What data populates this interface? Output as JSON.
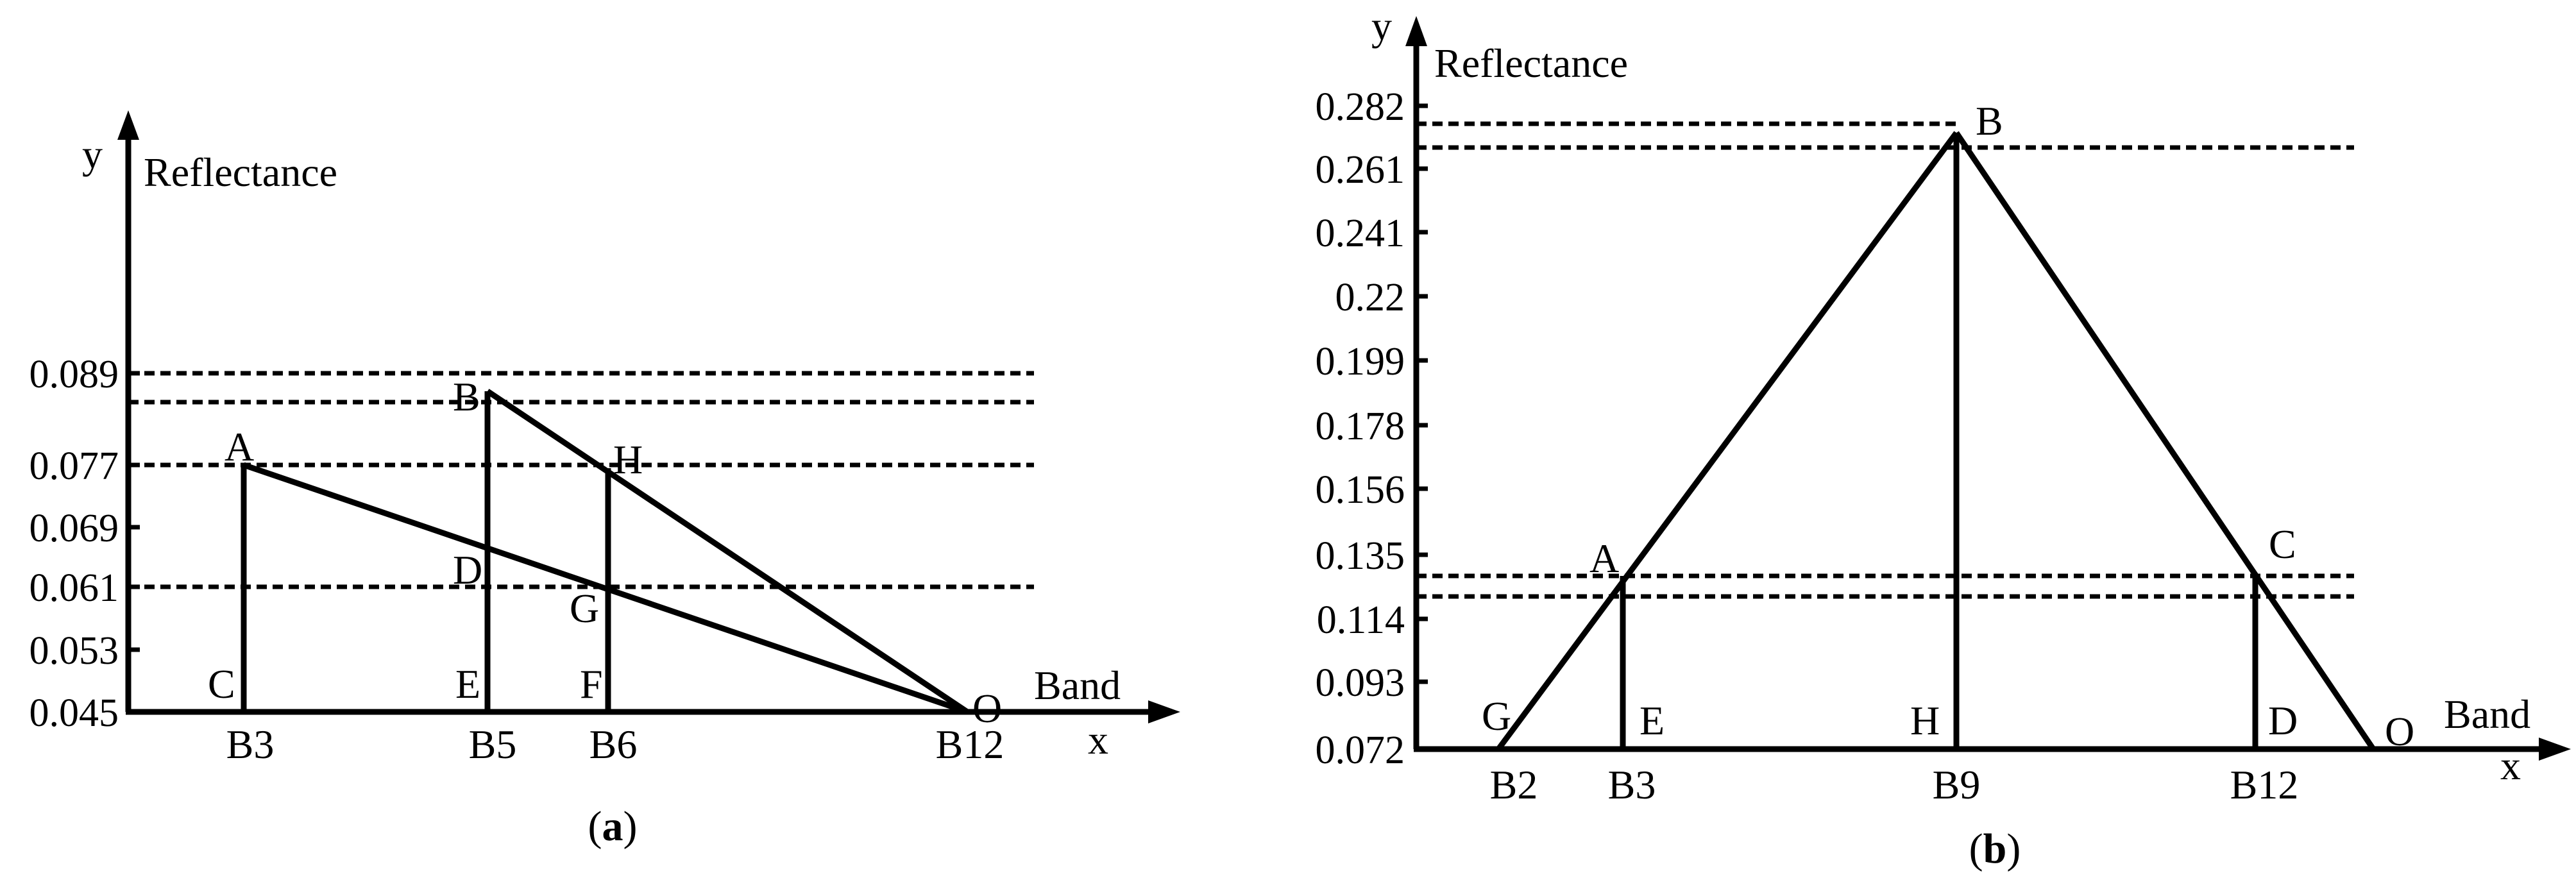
{
  "panel_a": {
    "caption_letter": "a",
    "y_axis_letter": "y",
    "y_axis_title": "Reflectance",
    "x_axis_letter": "x",
    "x_axis_title": "Band",
    "y_ticks": [
      "0.089",
      "0.077",
      "0.069",
      "0.061",
      "0.053",
      "0.045"
    ],
    "x_bands": [
      "B3",
      "B5",
      "B6",
      "B12"
    ],
    "points": [
      "A",
      "B",
      "C",
      "D",
      "E",
      "F",
      "G",
      "H",
      "O"
    ]
  },
  "panel_b": {
    "caption_letter": "b",
    "y_axis_letter": "y",
    "y_axis_title": "Reflectance",
    "x_axis_letter": "x",
    "x_axis_title": "Band",
    "y_ticks": [
      "0.282",
      "0.261",
      "0.241",
      "0.22",
      "0.199",
      "0.178",
      "0.156",
      "0.135",
      "0.114",
      "0.093",
      "0.072"
    ],
    "x_bands": [
      "B2",
      "B3",
      "B9",
      "B12"
    ],
    "points": [
      "A",
      "B",
      "C",
      "D",
      "E",
      "G",
      "H",
      "O"
    ]
  }
}
